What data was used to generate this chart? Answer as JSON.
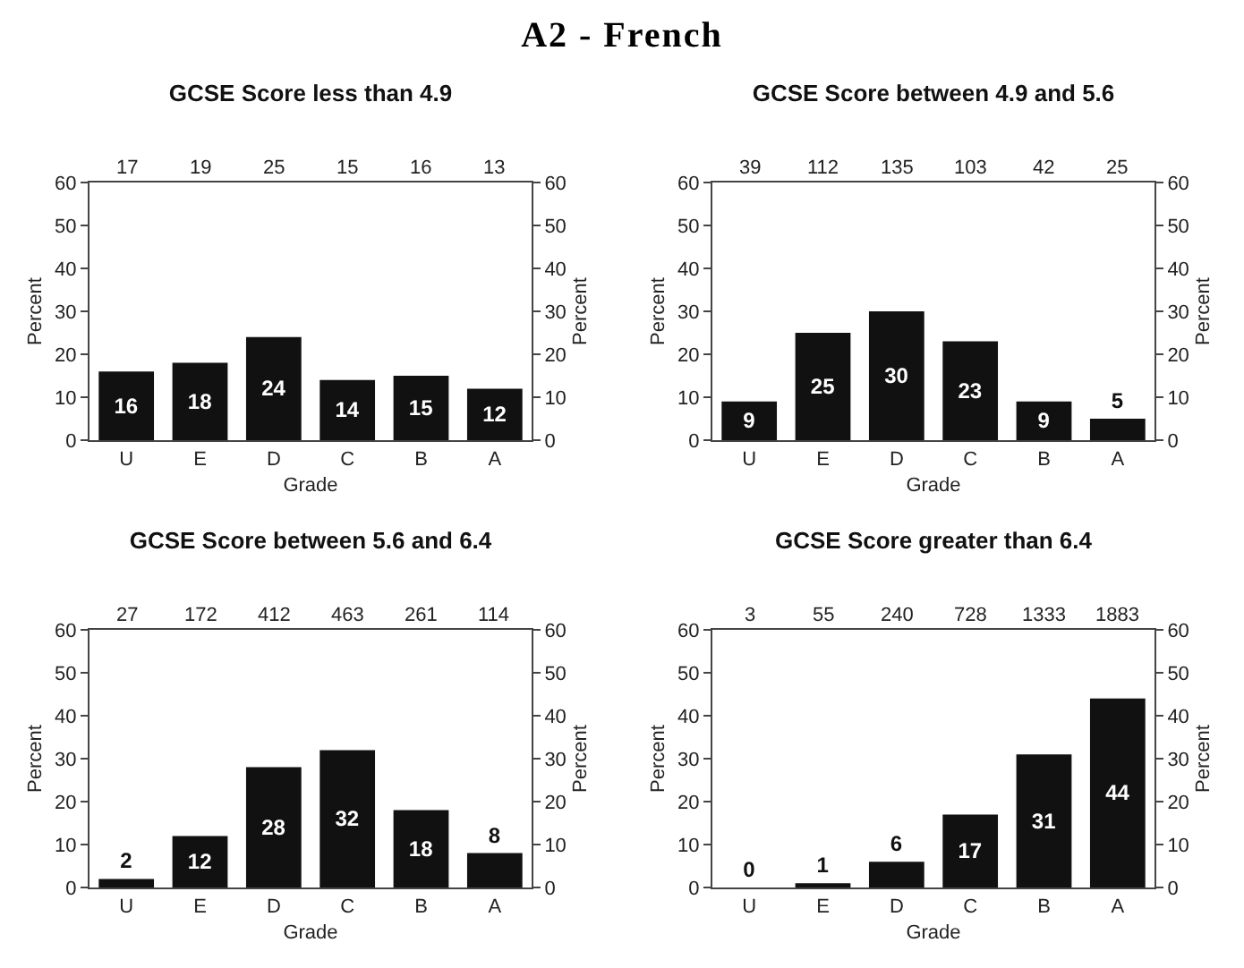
{
  "chart_data": [
    {
      "type": "other",
      "title": "A2 - French"
    },
    {
      "type": "bar",
      "title": "GCSE Score less than 4.9",
      "xlabel": "Grade",
      "ylabel": "Percent",
      "y2label": "Percent",
      "categories": [
        "U",
        "E",
        "D",
        "C",
        "B",
        "A"
      ],
      "values": [
        16,
        18,
        24,
        14,
        15,
        12
      ],
      "color": "#111111",
      "data_labels": true,
      "ylim": [
        0,
        60
      ],
      "yticks": [
        0,
        10,
        20,
        30,
        40,
        50,
        60
      ],
      "y2lim": [
        0,
        60
      ],
      "y2ticks": [
        0,
        10,
        20,
        30,
        40,
        50,
        60
      ],
      "grid": false,
      "legend": false,
      "annotations": [
        "17",
        "19",
        "25",
        "15",
        "16",
        "13"
      ]
    },
    {
      "type": "bar",
      "title": "GCSE Score between 4.9 and 5.6",
      "xlabel": "Grade",
      "ylabel": "Percent",
      "y2label": "Percent",
      "categories": [
        "U",
        "E",
        "D",
        "C",
        "B",
        "A"
      ],
      "values": [
        9,
        25,
        30,
        23,
        9,
        5
      ],
      "color": "#111111",
      "data_labels": true,
      "ylim": [
        0,
        60
      ],
      "yticks": [
        0,
        10,
        20,
        30,
        40,
        50,
        60
      ],
      "y2lim": [
        0,
        60
      ],
      "y2ticks": [
        0,
        10,
        20,
        30,
        40,
        50,
        60
      ],
      "grid": false,
      "legend": false,
      "annotations": [
        "39",
        "112",
        "135",
        "103",
        "42",
        "25"
      ]
    },
    {
      "type": "bar",
      "title": "GCSE Score between 5.6 and 6.4",
      "xlabel": "Grade",
      "ylabel": "Percent",
      "y2label": "Percent",
      "categories": [
        "U",
        "E",
        "D",
        "C",
        "B",
        "A"
      ],
      "values": [
        2,
        12,
        28,
        32,
        18,
        8
      ],
      "color": "#111111",
      "data_labels": true,
      "ylim": [
        0,
        60
      ],
      "yticks": [
        0,
        10,
        20,
        30,
        40,
        50,
        60
      ],
      "y2lim": [
        0,
        60
      ],
      "y2ticks": [
        0,
        10,
        20,
        30,
        40,
        50,
        60
      ],
      "grid": false,
      "legend": false,
      "annotations": [
        "27",
        "172",
        "412",
        "463",
        "261",
        "114"
      ]
    },
    {
      "type": "bar",
      "title": "GCSE Score greater than 6.4",
      "xlabel": "Grade",
      "ylabel": "Percent",
      "y2label": "Percent",
      "categories": [
        "U",
        "E",
        "D",
        "C",
        "B",
        "A"
      ],
      "values": [
        0,
        1,
        6,
        17,
        31,
        44
      ],
      "color": "#111111",
      "data_labels": true,
      "ylim": [
        0,
        60
      ],
      "yticks": [
        0,
        10,
        20,
        30,
        40,
        50,
        60
      ],
      "y2lim": [
        0,
        60
      ],
      "y2ticks": [
        0,
        10,
        20,
        30,
        40,
        50,
        60
      ],
      "grid": false,
      "legend": false,
      "annotations": [
        "3",
        "55",
        "240",
        "728",
        "1333",
        "1883"
      ]
    }
  ]
}
